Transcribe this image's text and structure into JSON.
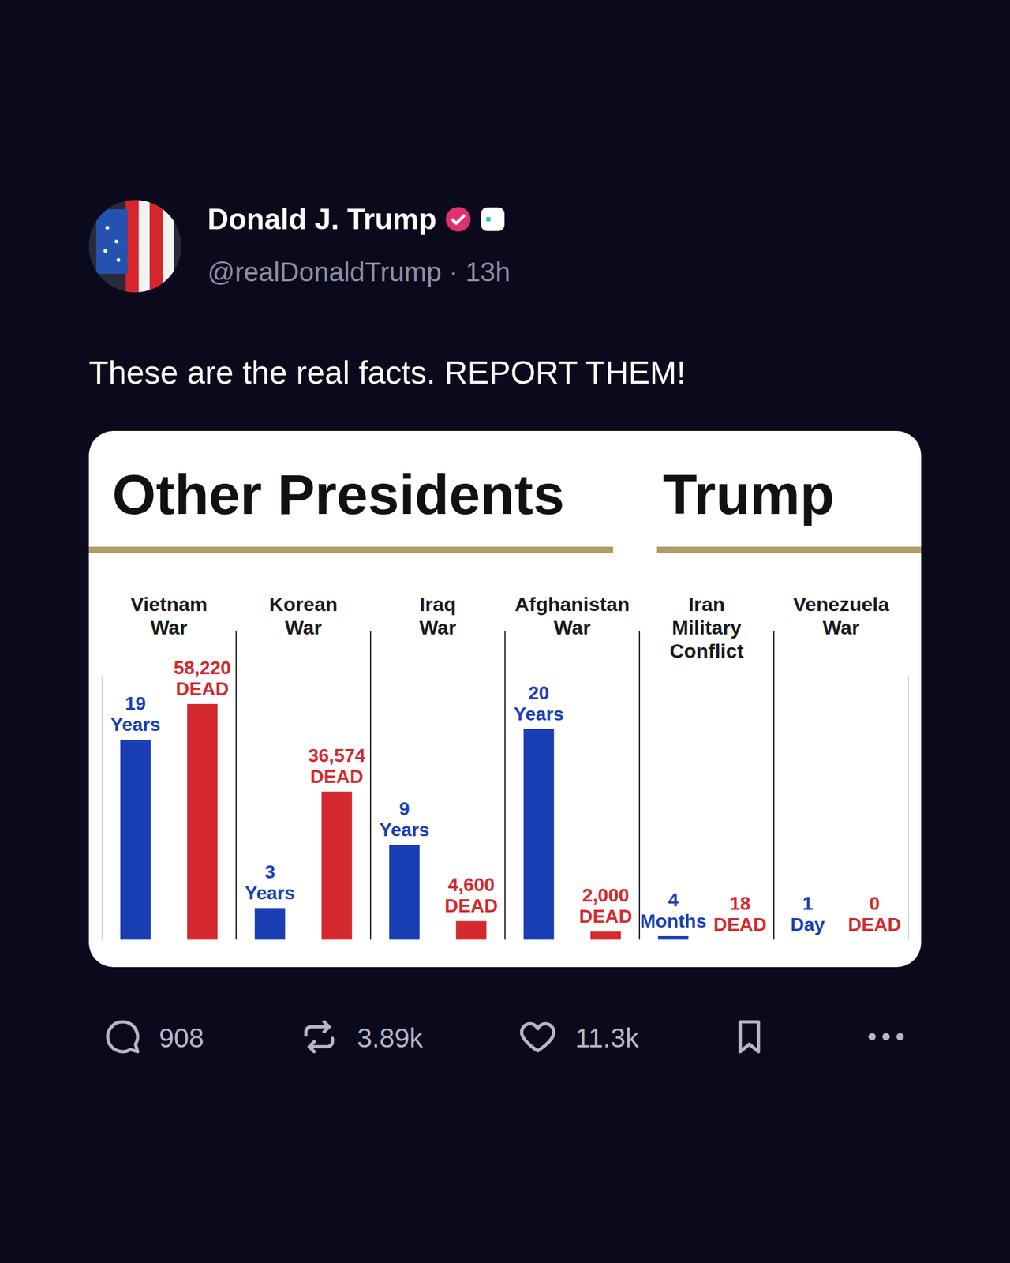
{
  "post": {
    "author": "Donald J. Trump",
    "byline": "@realDonaldTrump · 13h",
    "text": "These are the real facts. REPORT THEM!",
    "replies": 908,
    "reposts": "3.89k",
    "likes": "11.3k"
  },
  "chart_data": {
    "type": "bar",
    "groups": [
      {
        "title": "Other Presidents",
        "categories": [
          "Vietnam War",
          "Korean War",
          "Iraq War",
          "Afghanistan War"
        ]
      },
      {
        "title": "Trump",
        "categories": [
          "Iran Military Conflict",
          "Venezuela War"
        ]
      }
    ],
    "series": [
      {
        "color": "#1a3fb5",
        "values": [
          19,
          3,
          9,
          20,
          0.333,
          0.00274
        ],
        "value_labels": [
          "19 Years",
          "3 Years",
          "9 Years",
          "20 Years",
          "4 Months",
          "1 Day"
        ]
      },
      {
        "color": "#d42a2f",
        "axis": "y2",
        "values": [
          58220,
          36574,
          4600,
          2000,
          18,
          0
        ],
        "value_labels": [
          "58,220 DEAD",
          "36,574 DEAD",
          "4,600 DEAD",
          "2,000 DEAD",
          "18 DEAD",
          "0 DEAD"
        ]
      }
    ],
    "ylim": [
      0,
      25
    ],
    "y2lim": [
      0,
      65000
    ],
    "grid": false,
    "tick_labels": false,
    "data_labels": true
  }
}
